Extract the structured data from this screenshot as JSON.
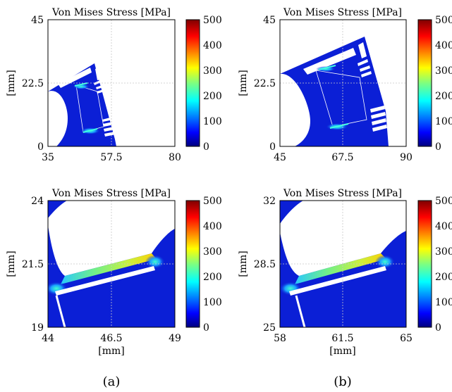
{
  "chart_data": [
    {
      "id": "a-full",
      "type": "heatmap",
      "title": "Von Mises Stress [MPa]",
      "xlabel": "",
      "ylabel": "[mm]",
      "xlim": [
        35,
        80
      ],
      "ylim": [
        0,
        45
      ],
      "xticks": [
        "35",
        "57.5",
        "80"
      ],
      "yticks": [
        "0",
        "22.5",
        "45"
      ],
      "colorbar": {
        "min": 0,
        "max": 500,
        "ticks": [
          "0",
          "100",
          "200",
          "300",
          "400",
          "500"
        ]
      },
      "grid": true
    },
    {
      "id": "b-full",
      "type": "heatmap",
      "title": "Von Mises Stress [MPa]",
      "xlabel": "",
      "ylabel": "[mm]",
      "xlim": [
        45,
        90
      ],
      "ylim": [
        0,
        45
      ],
      "xticks": [
        "45",
        "67.5",
        "90"
      ],
      "yticks": [
        "0",
        "22.5",
        "45"
      ],
      "colorbar": {
        "min": 0,
        "max": 500,
        "ticks": [
          "0",
          "100",
          "200",
          "300",
          "400",
          "500"
        ]
      },
      "grid": true
    },
    {
      "id": "a-zoom",
      "type": "heatmap",
      "title": "Von Mises Stress [MPa]",
      "xlabel": "[mm]",
      "ylabel": "[mm]",
      "xlim": [
        44,
        49
      ],
      "ylim": [
        19,
        24
      ],
      "xticks": [
        "44",
        "46.5",
        "49"
      ],
      "yticks": [
        "19",
        "21.5",
        "24"
      ],
      "colorbar": {
        "min": 0,
        "max": 500,
        "ticks": [
          "0",
          "100",
          "200",
          "300",
          "400",
          "500"
        ]
      },
      "grid": true
    },
    {
      "id": "b-zoom",
      "type": "heatmap",
      "title": "Von Mises Stress [MPa]",
      "xlabel": "[mm]",
      "ylabel": "[mm]",
      "xlim": [
        58,
        65
      ],
      "ylim": [
        25,
        32
      ],
      "xticks": [
        "58",
        "61.5",
        "65"
      ],
      "yticks": [
        "25",
        "28.5",
        "32"
      ],
      "colorbar": {
        "min": 0,
        "max": 500,
        "ticks": [
          "0",
          "100",
          "200",
          "300",
          "400",
          "500"
        ]
      },
      "grid": true
    }
  ],
  "captions": [
    "(a)",
    "(b)"
  ],
  "colormap": {
    "name": "jet",
    "stops": [
      "#00007f",
      "#0000ff",
      "#007fff",
      "#00ffff",
      "#7fff7f",
      "#ffff00",
      "#ff7f00",
      "#ff0000",
      "#7f0000"
    ],
    "field_color": "#0b1fd6"
  }
}
